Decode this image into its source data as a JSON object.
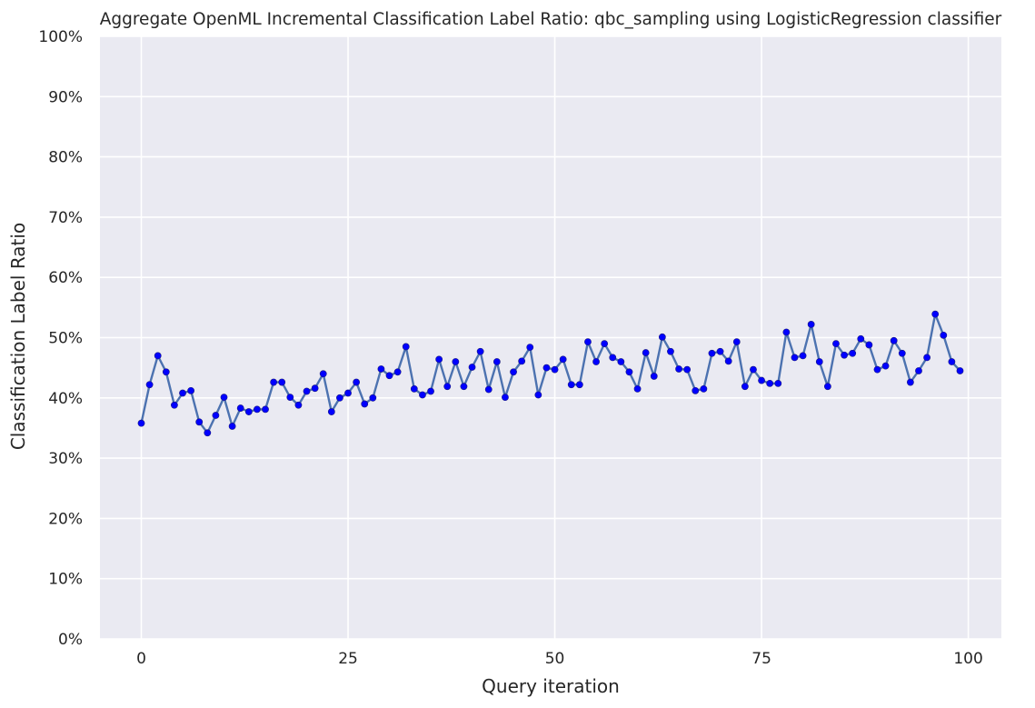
{
  "chart_data": {
    "type": "line",
    "title": "Aggregate OpenML Incremental Classification Label Ratio: qbc_sampling using LogisticRegression classifier",
    "xlabel": "Query iteration",
    "ylabel": "Classification Label Ratio",
    "xlim": [
      -5,
      104
    ],
    "ylim": [
      0,
      100
    ],
    "x_ticks": [
      0,
      25,
      50,
      75,
      100
    ],
    "y_ticks": [
      0,
      10,
      20,
      30,
      40,
      50,
      60,
      70,
      80,
      90,
      100
    ],
    "y_tick_format": "percent",
    "grid": true,
    "legend": "none",
    "background_color": "#eaeaf2",
    "grid_color": "#ffffff",
    "line_color": "#4c72b0",
    "marker_color": "#0000ff",
    "series": [
      {
        "x": [
          0,
          1,
          2,
          3,
          4,
          5,
          6,
          7,
          8,
          9,
          10,
          11,
          12,
          13,
          14,
          15,
          16,
          17,
          18,
          19,
          20,
          21,
          22,
          23,
          24,
          25,
          26,
          27,
          28,
          29,
          30,
          31,
          32,
          33,
          34,
          35,
          36,
          37,
          38,
          39,
          40,
          41,
          42,
          43,
          44,
          45,
          46,
          47,
          48,
          49,
          50,
          51,
          52,
          53,
          54,
          55,
          56,
          57,
          58,
          59,
          60,
          61,
          62,
          63,
          64,
          65,
          66,
          67,
          68,
          69,
          70,
          71,
          72,
          73,
          74,
          75,
          76,
          77,
          78,
          79,
          80,
          81,
          82,
          83,
          84,
          85,
          86,
          87,
          88,
          89,
          90,
          91,
          92,
          93,
          94,
          95,
          96,
          97,
          98,
          99
        ],
        "values": [
          35.8,
          42.2,
          47.0,
          44.3,
          38.8,
          40.8,
          41.2,
          36.0,
          34.2,
          37.1,
          40.1,
          35.3,
          38.3,
          37.7,
          38.1,
          38.1,
          42.6,
          42.6,
          40.1,
          38.8,
          41.1,
          41.6,
          44.0,
          37.7,
          40.0,
          40.8,
          42.6,
          39.0,
          40.0,
          44.8,
          43.7,
          44.3,
          48.5,
          41.5,
          40.5,
          41.1,
          46.4,
          41.9,
          46.0,
          41.9,
          45.1,
          47.7,
          41.4,
          46.0,
          40.1,
          44.3,
          46.1,
          48.4,
          40.5,
          45.0,
          44.7,
          46.4,
          42.2,
          42.2,
          49.3,
          46.0,
          49.0,
          46.7,
          46.0,
          44.3,
          41.5,
          47.5,
          43.6,
          50.1,
          47.7,
          44.8,
          44.7,
          41.2,
          41.5,
          47.4,
          47.7,
          46.1,
          49.3,
          41.9,
          44.7,
          42.9,
          42.4,
          42.4,
          50.9,
          46.7,
          47.0,
          52.2,
          46.0,
          41.9,
          49.0,
          47.1,
          47.4,
          49.8,
          48.8,
          44.7,
          45.3,
          49.5,
          47.4,
          42.6,
          44.5,
          46.7,
          53.9,
          50.4,
          46.0,
          44.5
        ]
      }
    ]
  }
}
